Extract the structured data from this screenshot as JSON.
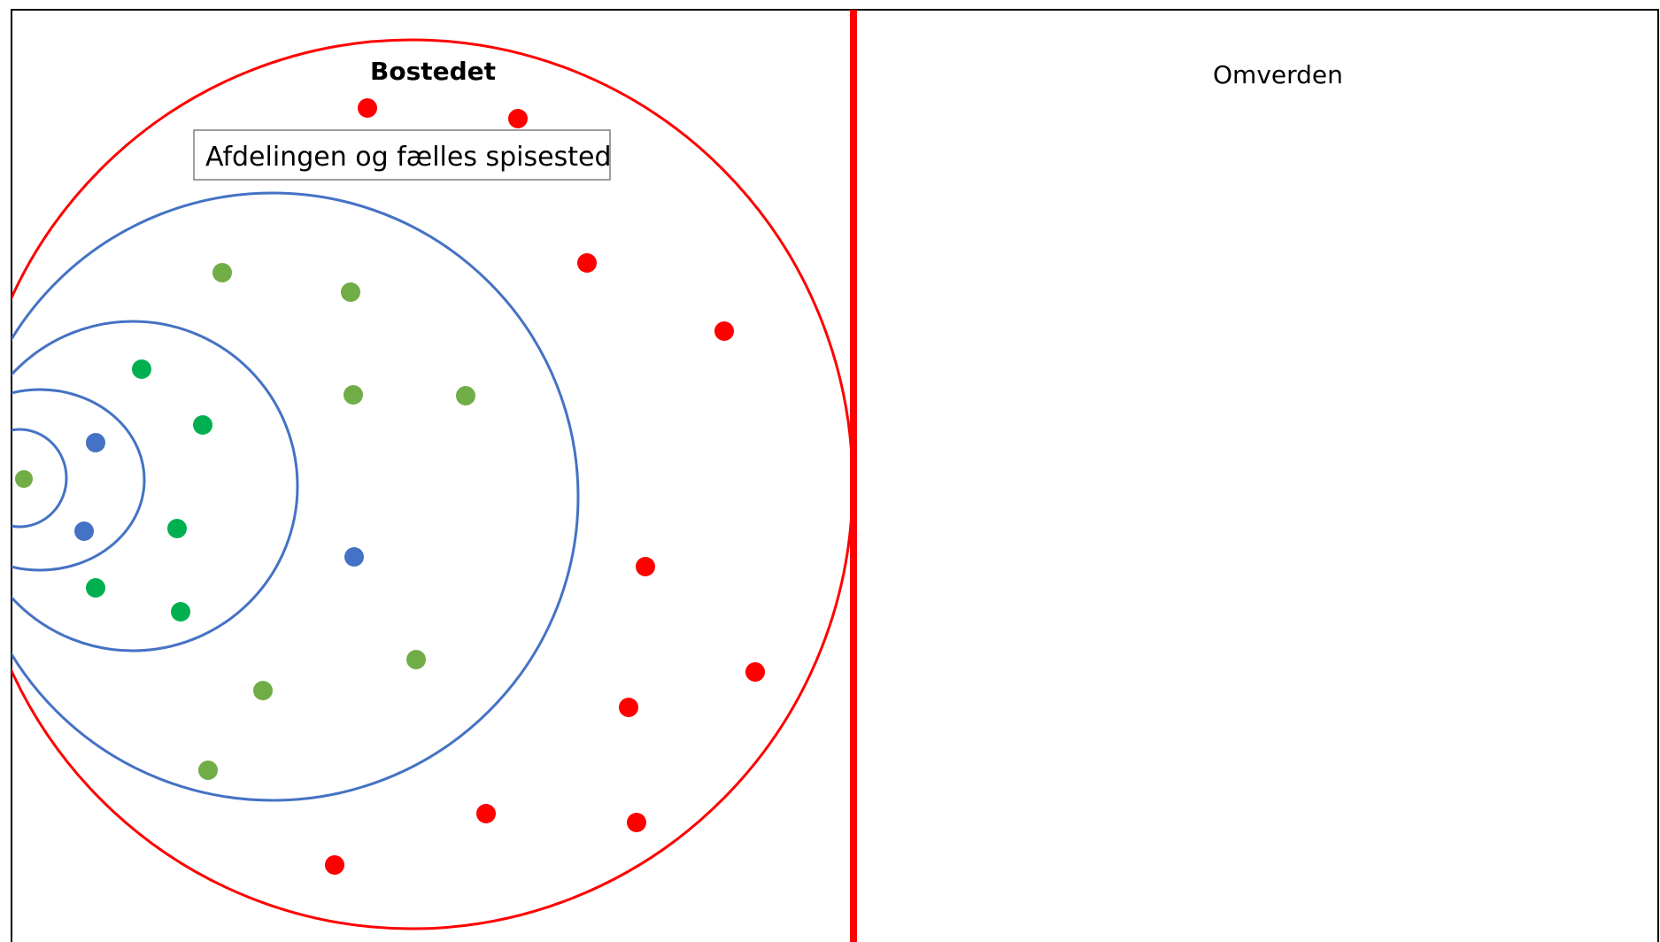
{
  "labels": {
    "inner_title": "Bostedet",
    "outer_title": "Omverden",
    "box_label": "Afdelingen og fælles spisested"
  },
  "colors": {
    "boundary": "#ff0000",
    "ring": "#4472c4",
    "frame": "#000000",
    "dot_red": "#ff0000",
    "dot_light_green": "#70ad47",
    "dot_green": "#00b050",
    "dot_blue": "#4472c4"
  }
}
